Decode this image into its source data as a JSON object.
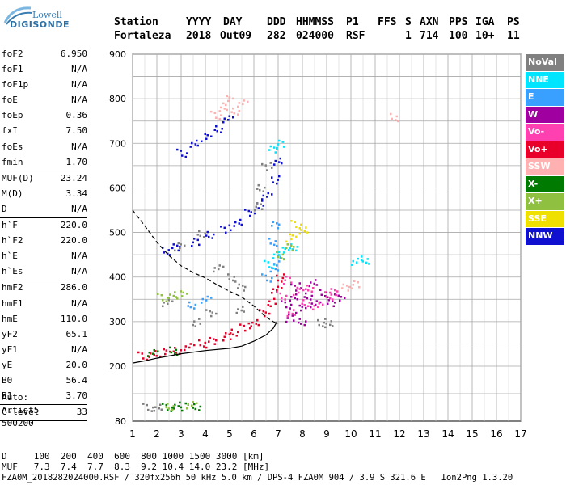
{
  "logo": {
    "top": "Lowell",
    "brand": "DIGISONDE"
  },
  "header": {
    "labels": [
      "Station",
      "YYYY",
      "DAY",
      "DDD",
      "HHMMSS",
      "P1",
      "FFS",
      "S",
      "AXN",
      "PPS",
      "IGA",
      "PS"
    ],
    "values": [
      "Fortaleza",
      "2018",
      "Out09",
      "282",
      "024000",
      "RSF",
      "",
      "1",
      "714",
      "100",
      "10+",
      "11"
    ]
  },
  "params": [
    {
      "label": "foF2",
      "value": "6.950"
    },
    {
      "label": "foF1",
      "value": "N/A"
    },
    {
      "label": "foF1p",
      "value": "N/A"
    },
    {
      "label": "foE",
      "value": "N/A"
    },
    {
      "label": "foEp",
      "value": "0.36"
    },
    {
      "label": "fxI",
      "value": "7.50"
    },
    {
      "label": "foEs",
      "value": "N/A"
    },
    {
      "label": "fmin",
      "value": "1.70",
      "sep_after": true
    },
    {
      "label": "MUF(D)",
      "value": "23.24"
    },
    {
      "label": "M(D)",
      "value": "3.34"
    },
    {
      "label": "D",
      "value": "N/A",
      "sep_after": true
    },
    {
      "label": "h`F",
      "value": "220.0"
    },
    {
      "label": "h`F2",
      "value": "220.0"
    },
    {
      "label": "h`E",
      "value": "N/A"
    },
    {
      "label": "h`Es",
      "value": "N/A",
      "sep_after": true
    },
    {
      "label": "hmF2",
      "value": "286.0"
    },
    {
      "label": "hmF1",
      "value": "N/A"
    },
    {
      "label": "hmE",
      "value": "110.0"
    },
    {
      "label": "yF2",
      "value": "65.1"
    },
    {
      "label": "yF1",
      "value": "N/A"
    },
    {
      "label": "yE",
      "value": "20.0"
    },
    {
      "label": "B0",
      "value": "56.4"
    },
    {
      "label": "B1",
      "value": "3.70",
      "sep_after": true
    },
    {
      "label": "C-level",
      "value": "33",
      "sep_after": true
    }
  ],
  "tail": {
    "auto": "Auto:",
    "artist": "Artist5",
    "code": "500200"
  },
  "legend": [
    {
      "label": "NoVal",
      "color": "#808080"
    },
    {
      "label": "NNE",
      "color": "#00e5ff"
    },
    {
      "label": "E",
      "color": "#3aa0ff"
    },
    {
      "label": "W",
      "color": "#a000a0"
    },
    {
      "label": "Vo-",
      "color": "#ff40b0"
    },
    {
      "label": "Vo+",
      "color": "#e8002a"
    },
    {
      "label": "SSW",
      "color": "#ffb0b0"
    },
    {
      "label": "X-",
      "color": "#007a00"
    },
    {
      "label": "X+",
      "color": "#90c040"
    },
    {
      "label": "SSE",
      "color": "#f0e000"
    },
    {
      "label": "NNW",
      "color": "#1010d0"
    }
  ],
  "footer": {
    "line1": "D     100  200  400  600  800 1000 1500 3000 [km]",
    "line2": "MUF   7.3  7.4  7.7  8.3  9.2 10.4 14.0 23.2 [MHz]",
    "line3": "FZA0M_2018282024000.RSF / 320fx256h 50 kHz 5.0 km / DPS-4 FZA0M 904 / 3.9 S 321.6 E   Ion2Png 1.3.20"
  },
  "chart_data": {
    "type": "scatter",
    "xlim": [
      1,
      17
    ],
    "ylim": [
      80,
      900
    ],
    "x_ticks": [
      1,
      2,
      3,
      4,
      5,
      6,
      7,
      8,
      9,
      10,
      11,
      12,
      13,
      14,
      15,
      16,
      17
    ],
    "y_ticks": [
      80,
      200,
      300,
      400,
      500,
      600,
      700,
      800,
      900
    ],
    "grid": true,
    "legend_position": "right",
    "series": [
      {
        "name": "NNW",
        "color": "#1010d0",
        "points": [
          [
            3.0,
            680
          ],
          [
            3.5,
            700
          ],
          [
            4.0,
            715
          ],
          [
            4.5,
            735
          ],
          [
            4.9,
            755
          ],
          [
            2.3,
            460
          ],
          [
            2.8,
            470
          ],
          [
            3.5,
            480
          ],
          [
            4.2,
            495
          ],
          [
            4.8,
            510
          ],
          [
            5.3,
            525
          ],
          [
            5.8,
            545
          ],
          [
            6.2,
            565
          ],
          [
            6.5,
            585
          ],
          [
            6.8,
            620
          ],
          [
            7.0,
            660
          ]
        ]
      },
      {
        "name": "Vo+",
        "color": "#e8002a",
        "points": [
          [
            1.4,
            225
          ],
          [
            1.8,
            228
          ],
          [
            2.3,
            232
          ],
          [
            2.8,
            238
          ],
          [
            3.3,
            244
          ],
          [
            3.8,
            252
          ],
          [
            4.3,
            260
          ],
          [
            4.8,
            268
          ],
          [
            5.2,
            276
          ],
          [
            5.6,
            290
          ],
          [
            6.0,
            300
          ],
          [
            6.4,
            320
          ],
          [
            6.7,
            345
          ],
          [
            6.9,
            375
          ],
          [
            7.0,
            400
          ]
        ]
      },
      {
        "name": "W",
        "color": "#a000a0",
        "points": [
          [
            7.3,
            340
          ],
          [
            7.6,
            355
          ],
          [
            7.9,
            330
          ],
          [
            8.2,
            360
          ],
          [
            8.5,
            340
          ],
          [
            8.8,
            365
          ],
          [
            9.2,
            345
          ],
          [
            7.4,
            310
          ],
          [
            8.0,
            300
          ],
          [
            7.7,
            380
          ],
          [
            8.4,
            390
          ],
          [
            9.5,
            355
          ]
        ]
      },
      {
        "name": "Vo-",
        "color": "#ff40b0",
        "points": [
          [
            7.1,
            360
          ],
          [
            7.5,
            320
          ],
          [
            7.8,
            370
          ],
          [
            8.1,
            345
          ],
          [
            8.6,
            335
          ],
          [
            9.0,
            360
          ],
          [
            9.3,
            370
          ],
          [
            7.3,
            395
          ],
          [
            8.3,
            375
          ]
        ]
      },
      {
        "name": "NNE",
        "color": "#00e5ff",
        "points": [
          [
            6.6,
            430
          ],
          [
            6.9,
            450
          ],
          [
            7.2,
            460
          ],
          [
            7.6,
            470
          ],
          [
            10.2,
            435
          ],
          [
            10.5,
            440
          ],
          [
            6.8,
            690
          ],
          [
            7.0,
            700
          ]
        ]
      },
      {
        "name": "E",
        "color": "#3aa0ff",
        "points": [
          [
            6.5,
            400
          ],
          [
            6.8,
            420
          ],
          [
            7.0,
            440
          ],
          [
            3.4,
            340
          ],
          [
            4.0,
            350
          ],
          [
            6.7,
            480
          ],
          [
            6.9,
            520
          ]
        ]
      },
      {
        "name": "X-",
        "color": "#007a00",
        "points": [
          [
            2.4,
            112
          ],
          [
            2.8,
            115
          ],
          [
            3.2,
            113
          ],
          [
            3.6,
            114
          ],
          [
            1.8,
            230
          ],
          [
            2.6,
            236
          ]
        ]
      },
      {
        "name": "X+",
        "color": "#90c040",
        "points": [
          [
            2.2,
            356
          ],
          [
            2.6,
            360
          ],
          [
            3.0,
            362
          ],
          [
            2.5,
            115
          ],
          [
            3.4,
            116
          ],
          [
            7.0,
            450
          ],
          [
            7.5,
            470
          ]
        ]
      },
      {
        "name": "SSW",
        "color": "#ffb0b0",
        "points": [
          [
            4.4,
            765
          ],
          [
            4.7,
            780
          ],
          [
            4.9,
            800
          ],
          [
            5.2,
            775
          ],
          [
            5.5,
            790
          ],
          [
            11.7,
            760
          ],
          [
            9.8,
            380
          ],
          [
            10.1,
            385
          ]
        ]
      },
      {
        "name": "SSE",
        "color": "#f0e000",
        "points": [
          [
            7.7,
            520
          ],
          [
            8.0,
            505
          ],
          [
            7.5,
            490
          ]
        ]
      },
      {
        "name": "NoVal",
        "color": "#808080",
        "points": [
          [
            1.6,
            112
          ],
          [
            2.0,
            110
          ],
          [
            2.9,
            470
          ],
          [
            3.8,
            500
          ],
          [
            4.5,
            420
          ],
          [
            5.0,
            400
          ],
          [
            5.5,
            380
          ],
          [
            6.1,
            560
          ],
          [
            6.3,
            600
          ],
          [
            6.5,
            650
          ],
          [
            5.4,
            330
          ],
          [
            4.2,
            320
          ],
          [
            3.6,
            300
          ],
          [
            2.4,
            345
          ],
          [
            8.7,
            300
          ],
          [
            9.1,
            295
          ]
        ]
      }
    ],
    "lines": [
      {
        "name": "profile",
        "style": "solid",
        "color": "#000000",
        "points": [
          [
            1.0,
            207
          ],
          [
            1.5,
            212
          ],
          [
            2.0,
            218
          ],
          [
            3.0,
            228
          ],
          [
            4.0,
            235
          ],
          [
            5.0,
            240
          ],
          [
            5.5,
            245
          ],
          [
            6.0,
            256
          ],
          [
            6.5,
            270
          ],
          [
            6.8,
            285
          ],
          [
            6.95,
            300
          ]
        ]
      },
      {
        "name": "model",
        "style": "dashed",
        "color": "#000000",
        "points": [
          [
            1.0,
            550
          ],
          [
            1.5,
            515
          ],
          [
            2.0,
            478
          ],
          [
            2.5,
            448
          ],
          [
            3.0,
            425
          ],
          [
            3.5,
            410
          ],
          [
            4.0,
            398
          ],
          [
            4.5,
            382
          ],
          [
            5.0,
            368
          ],
          [
            5.5,
            355
          ],
          [
            6.0,
            335
          ],
          [
            6.5,
            310
          ],
          [
            6.8,
            300
          ],
          [
            7.0,
            295
          ]
        ]
      }
    ]
  }
}
